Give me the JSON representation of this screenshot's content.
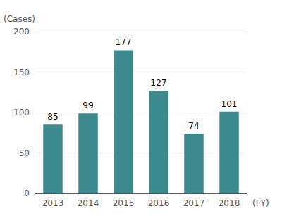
{
  "chart_data": {
    "type": "bar",
    "categories": [
      "2013",
      "2014",
      "2015",
      "2016",
      "2017",
      "2018"
    ],
    "values": [
      85,
      99,
      177,
      127,
      74,
      101
    ],
    "color": "#3d8a8e",
    "xlabel": "(FY)",
    "ylabel": "(Cases)",
    "ylim": [
      0,
      200
    ],
    "yticks": [
      0,
      50,
      100,
      150,
      200
    ],
    "grid": true,
    "data_labels": true
  }
}
